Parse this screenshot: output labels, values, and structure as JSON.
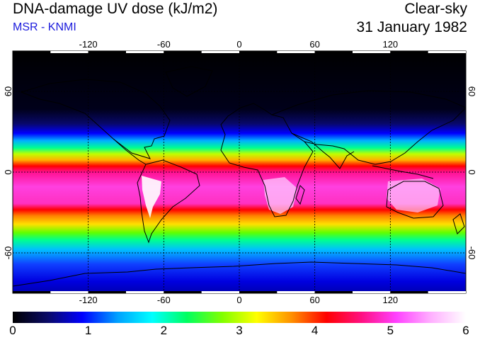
{
  "header": {
    "title": "DNA-damage UV dose (kJ/m2)",
    "source": "MSR - KNMI",
    "condition": "Clear-sky",
    "date": "31 January 1982"
  },
  "map": {
    "projection": "equirectangular",
    "lon_range": [
      -180,
      180
    ],
    "lat_range": [
      -90,
      90
    ],
    "lon_ticks": [
      "-120",
      "-60",
      "0",
      "60",
      "120"
    ],
    "lat_ticks": [
      "60",
      "0",
      "-60"
    ]
  },
  "colorbar": {
    "min": 0,
    "max": 6,
    "labels": [
      "0",
      "1",
      "2",
      "3",
      "4",
      "5",
      "6"
    ],
    "colors": [
      "#000000",
      "#0a0a66",
      "#0000ff",
      "#00a0ff",
      "#00ffff",
      "#00ff60",
      "#80ff00",
      "#ffff00",
      "#ff9000",
      "#ff0000",
      "#ff1080",
      "#ff40ff",
      "#ffb0ff",
      "#ffffff"
    ]
  }
}
